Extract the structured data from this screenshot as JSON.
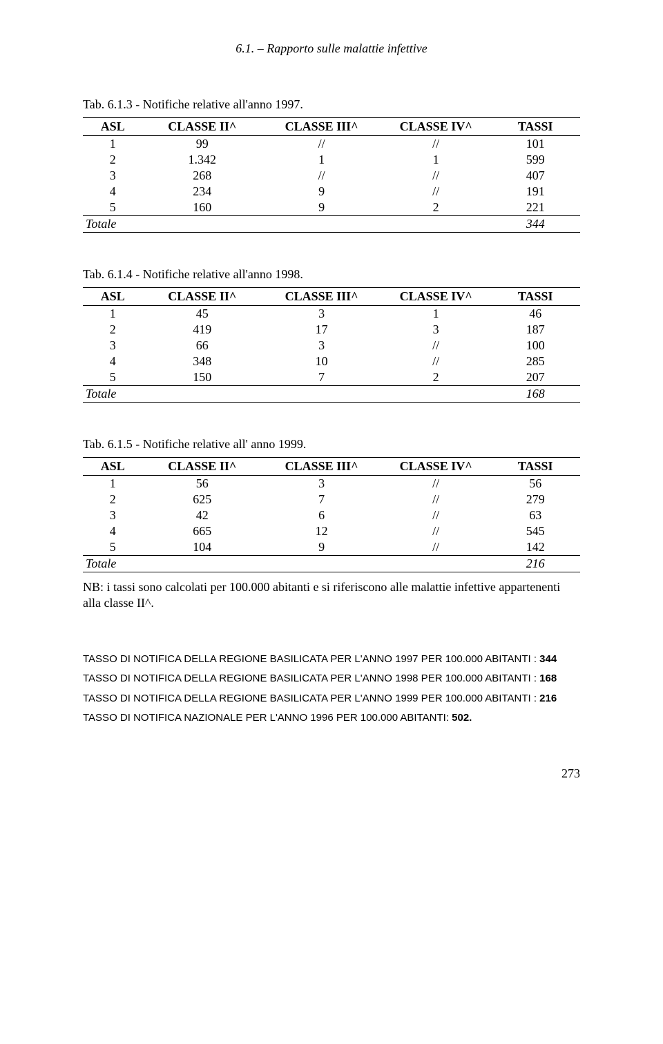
{
  "header": "6.1. – Rapporto sulle malattie infettive",
  "tables": [
    {
      "caption": "Tab. 6.1.3 -   Notifiche relative all'anno 1997.",
      "columns": [
        "ASL",
        "CLASSE II^",
        "CLASSE III^",
        "CLASSE IV^",
        "TASSI"
      ],
      "rows": [
        [
          "1",
          "99",
          "//",
          "//",
          "101"
        ],
        [
          "2",
          "1.342",
          "1",
          "1",
          "599"
        ],
        [
          "3",
          "268",
          "//",
          "//",
          "407"
        ],
        [
          "4",
          "234",
          "9",
          "//",
          "191"
        ],
        [
          "5",
          "160",
          "9",
          "2",
          "221"
        ]
      ],
      "totale_label": "Totale",
      "totale_value": "344"
    },
    {
      "caption": "Tab. 6.1.4 -   Notifiche relative  all'anno 1998.",
      "columns": [
        "ASL",
        "CLASSE II^",
        "CLASSE III^",
        "CLASSE IV^",
        "TASSI"
      ],
      "rows": [
        [
          "1",
          "45",
          "3",
          "1",
          "46"
        ],
        [
          "2",
          "419",
          "17",
          "3",
          "187"
        ],
        [
          "3",
          "66",
          "3",
          "//",
          "100"
        ],
        [
          "4",
          "348",
          "10",
          "//",
          "285"
        ],
        [
          "5",
          "150",
          "7",
          "2",
          "207"
        ]
      ],
      "totale_label": "Totale",
      "totale_value": "168"
    },
    {
      "caption": "Tab. 6.1.5 -   Notifiche relative all' anno 1999.",
      "columns": [
        "ASL",
        "CLASSE II^",
        "CLASSE III^",
        "CLASSE IV^",
        "TASSI"
      ],
      "rows": [
        [
          "1",
          "56",
          "3",
          "//",
          "56"
        ],
        [
          "2",
          "625",
          "7",
          "//",
          "279"
        ],
        [
          "3",
          "42",
          "6",
          "//",
          "63"
        ],
        [
          "4",
          "665",
          "12",
          "//",
          "545"
        ],
        [
          "5",
          "104",
          "9",
          "//",
          "142"
        ]
      ],
      "totale_label": "Totale",
      "totale_value": "216"
    }
  ],
  "nb": "NB: i tassi sono calcolati per 100.000 abitanti e si riferiscono alle malattie infettive appartenenti alla classe II^.",
  "tasso_lines": [
    "TASSO DI NOTIFICA DELLA REGIONE BASILICATA PER L'ANNO 1997 PER 100.000 ABITANTI : 344",
    "TASSO DI NOTIFICA DELLA REGIONE BASILICATA PER L'ANNO 1998 PER 100.000 ABITANTI : 168",
    "TASSO DI NOTIFICA DELLA REGIONE BASILICATA PER L'ANNO 1999 PER 100.000 ABITANTI : 216",
    "TASSO DI NOTIFICA NAZIONALE PER L'ANNO 1996 PER 100.000 ABITANTI: 502."
  ],
  "page_number": "273"
}
